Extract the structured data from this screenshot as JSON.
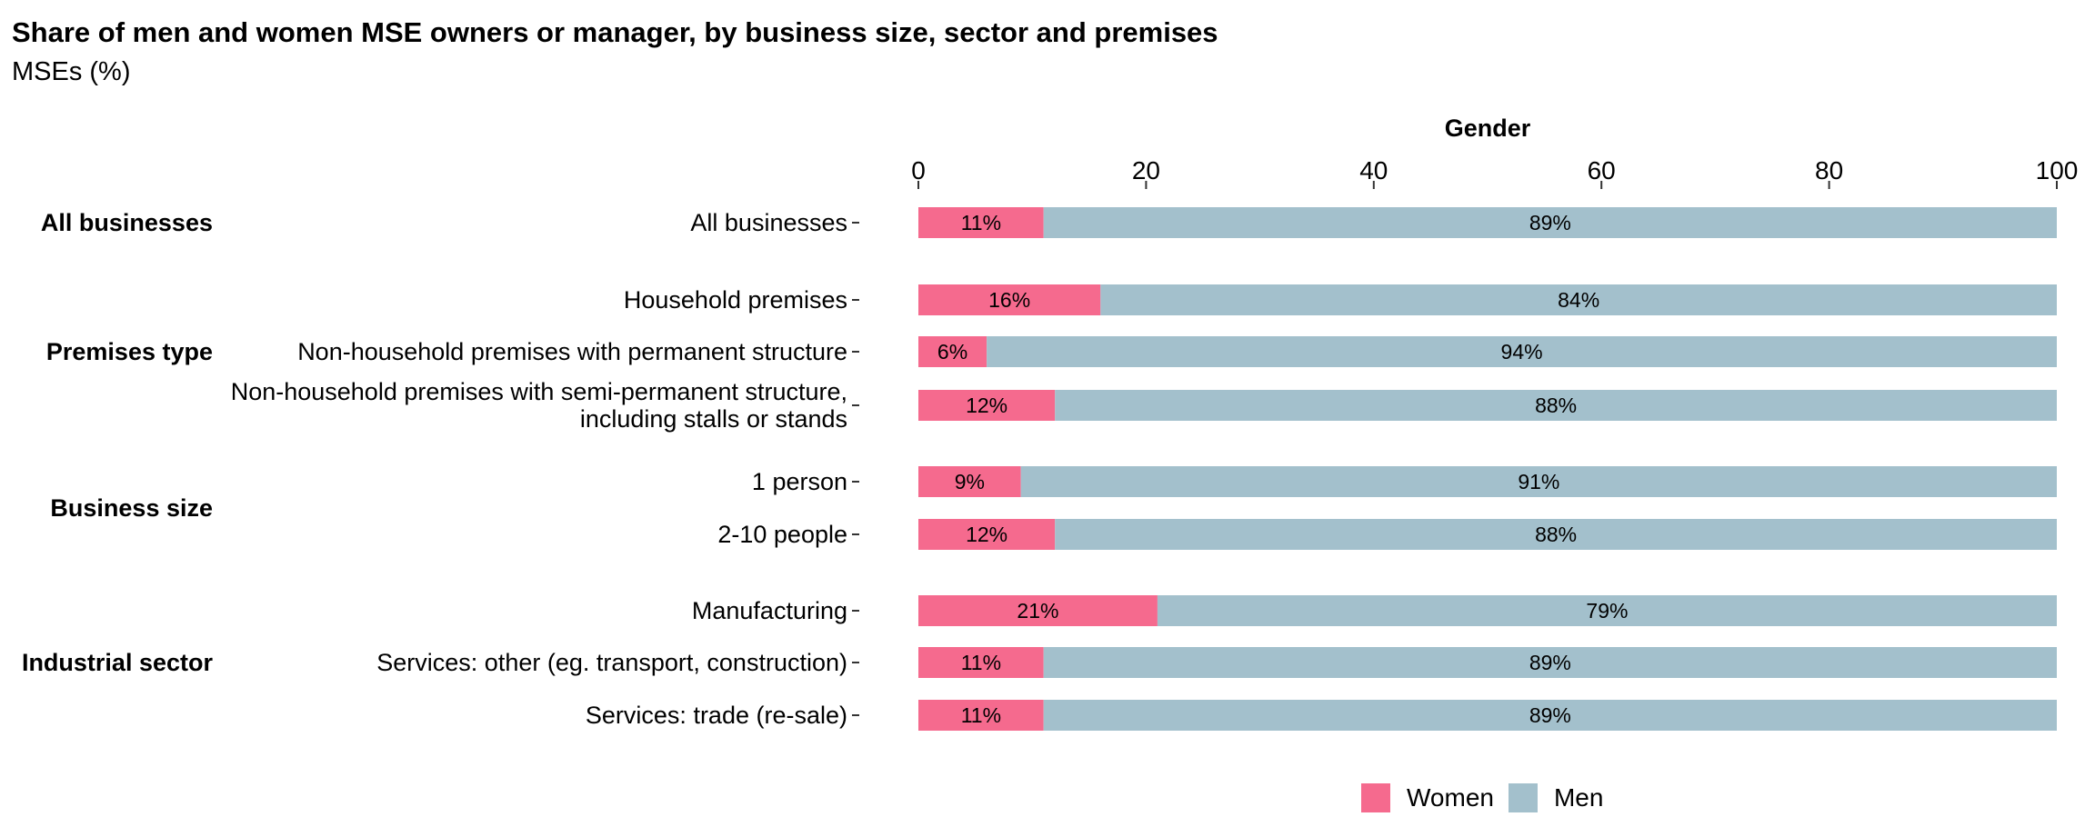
{
  "header": {
    "title": "Share of men and women MSE owners or manager, by business size, sector and premises",
    "subtitle": "MSEs (%)"
  },
  "chart_data": {
    "type": "bar",
    "orientation": "horizontal",
    "stacked": true,
    "title": "Share of men and women MSE owners or manager, by business size, sector and premises",
    "subtitle": "MSEs (%)",
    "xlabel": "Gender",
    "xlim": [
      0,
      100
    ],
    "xticks": [
      "0",
      "20",
      "40",
      "60",
      "80",
      "100"
    ],
    "x_axis_position": "top",
    "grid": false,
    "legend_position": "bottom",
    "colors": {
      "Women": "#F56A8E",
      "Men": "#A3C0CC"
    },
    "groups": [
      {
        "name": "All businesses",
        "categories": [
          "All businesses"
        ]
      },
      {
        "name": "Premises type",
        "categories": [
          "Household premises",
          "Non-household premises with permanent structure",
          "Non-household premises with semi-permanent structure,\nincluding stalls or stands"
        ]
      },
      {
        "name": "Business size",
        "categories": [
          "1 person",
          "2-10 people"
        ]
      },
      {
        "name": "Industrial sector",
        "categories": [
          "Manufacturing",
          "Services: other (eg. transport, construction)",
          "Services: trade (re-sale)"
        ]
      }
    ],
    "categories": [
      "All businesses",
      "Household premises",
      "Non-household premises with permanent structure",
      "Non-household premises with semi-permanent structure,\nincluding stalls or stands",
      "1 person",
      "2-10 people",
      "Manufacturing",
      "Services: other (eg. transport, construction)",
      "Services: trade (re-sale)"
    ],
    "series": [
      {
        "name": "Women",
        "values": [
          11,
          16,
          6,
          12,
          9,
          12,
          21,
          11,
          11
        ],
        "labels": [
          "11%",
          "16%",
          "6%",
          "12%",
          "9%",
          "12%",
          "21%",
          "11%",
          "11%"
        ]
      },
      {
        "name": "Men",
        "values": [
          89,
          84,
          94,
          88,
          91,
          88,
          79,
          89,
          89
        ],
        "labels": [
          "89%",
          "84%",
          "94%",
          "88%",
          "91%",
          "88%",
          "79%",
          "89%",
          "89%"
        ]
      }
    ]
  },
  "legend": {
    "items": [
      {
        "label": "Women",
        "color": "#F56A8E"
      },
      {
        "label": "Men",
        "color": "#A3C0CC"
      }
    ]
  }
}
